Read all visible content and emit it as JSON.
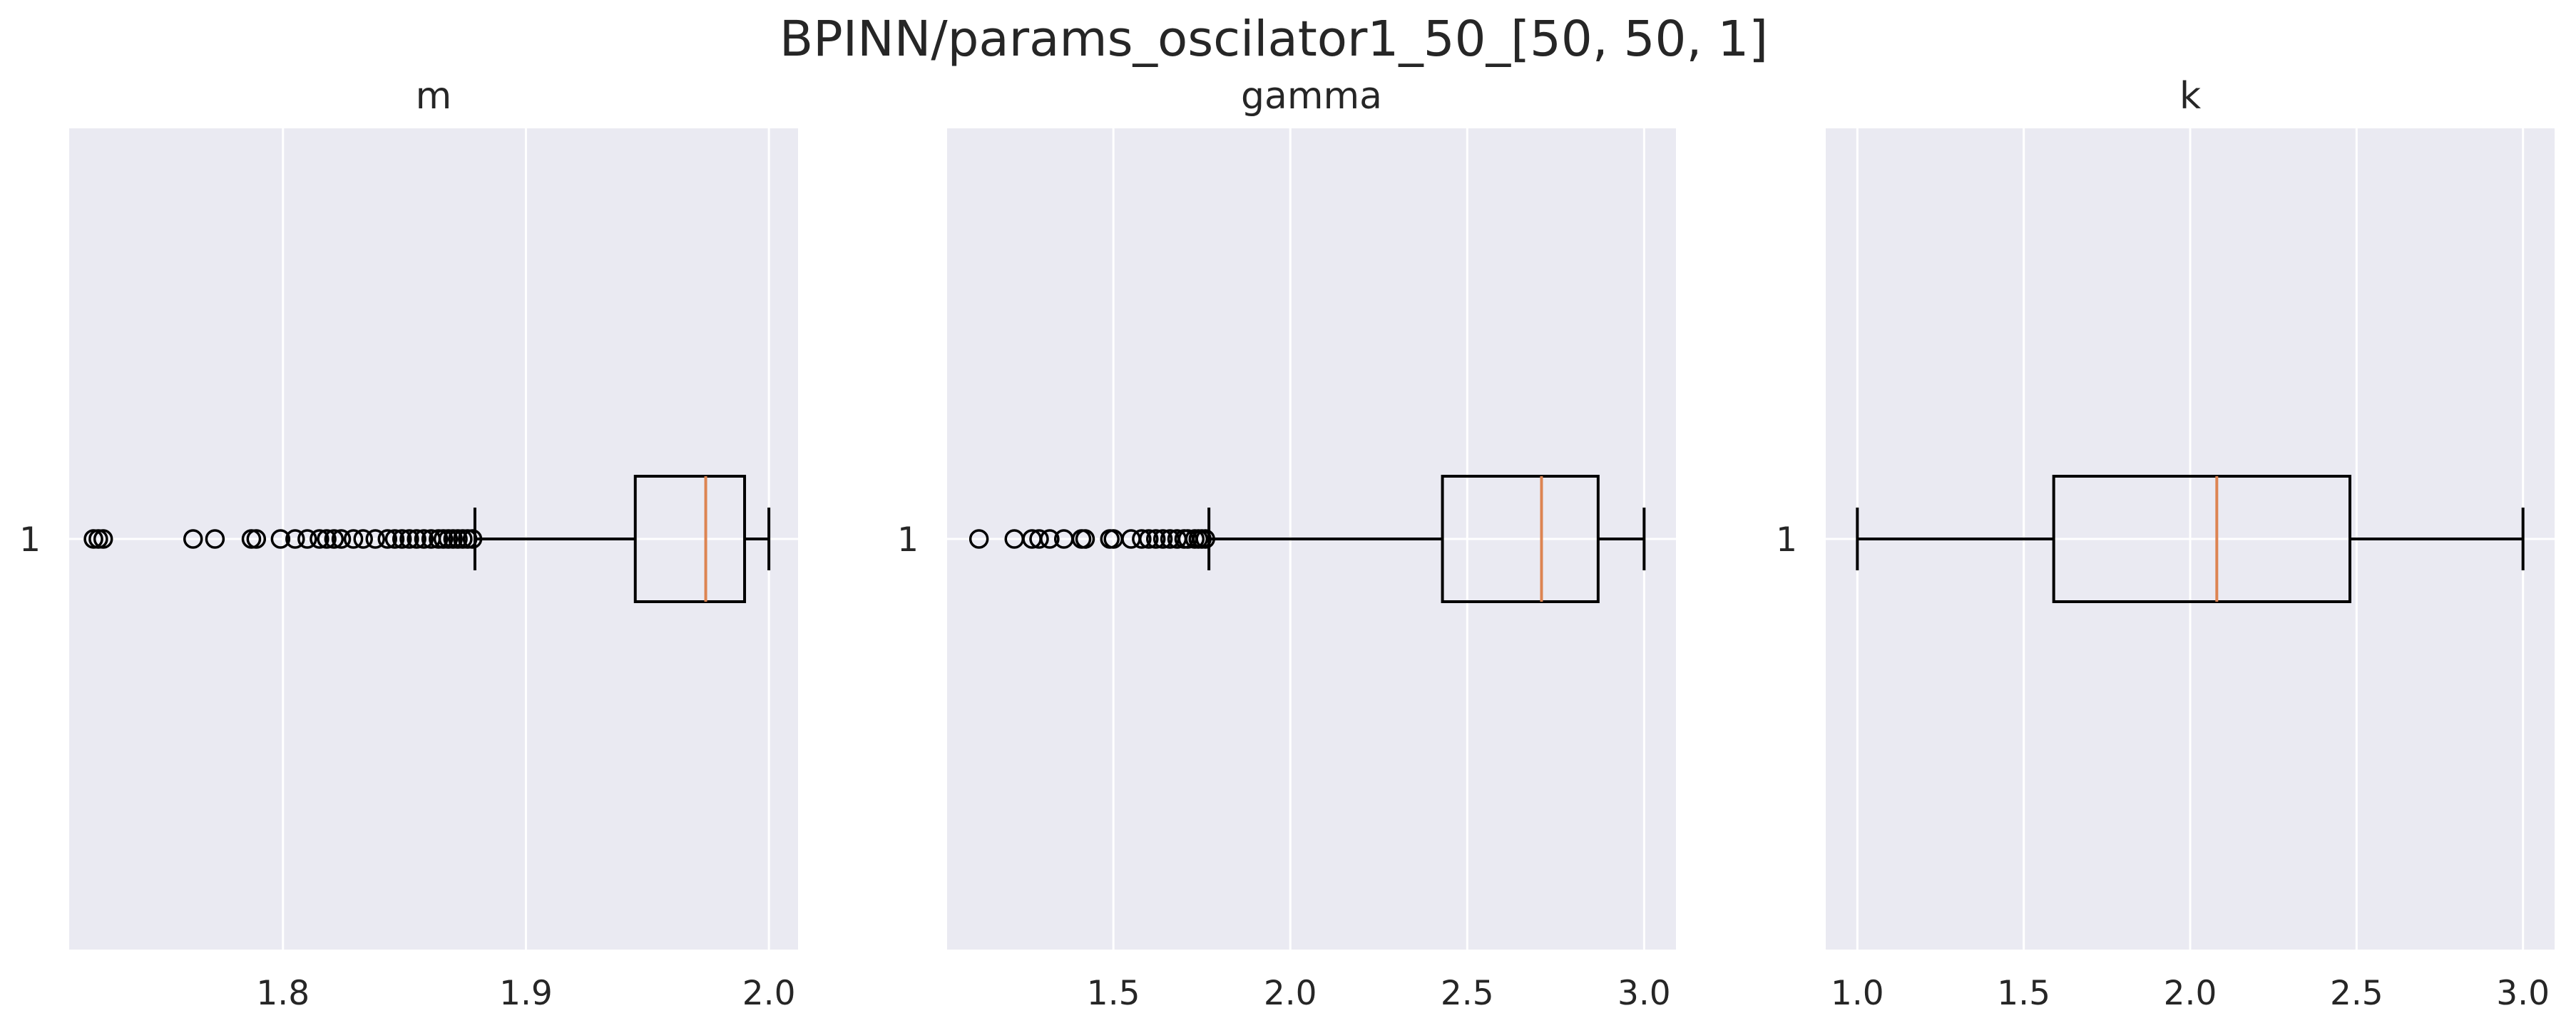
{
  "figure": {
    "suptitle": "BPINN/params_oscilator1_50_[50, 50, 1]"
  },
  "style": {
    "axes_bg": "#eaeaf2",
    "grid_color": "#ffffff",
    "box_color": "#000000",
    "median_color": "#dd8452",
    "text_color": "#262626"
  },
  "chart_data": [
    {
      "type": "boxplot",
      "orientation": "horizontal",
      "title": "m",
      "xlim": [
        1.712,
        2.012
      ],
      "xticks": [
        1.8,
        1.9,
        2.0
      ],
      "xtick_labels": [
        "1.8",
        "1.9",
        "2.0"
      ],
      "ytick_labels": [
        "1"
      ],
      "grid": true,
      "box": {
        "whisker_low": 1.879,
        "q1": 1.945,
        "median": 1.974,
        "q3": 1.99,
        "whisker_high": 2.0,
        "outliers": [
          1.722,
          1.724,
          1.726,
          1.763,
          1.772,
          1.787,
          1.789,
          1.799,
          1.805,
          1.81,
          1.815,
          1.818,
          1.821,
          1.824,
          1.829,
          1.833,
          1.838,
          1.843,
          1.846,
          1.849,
          1.852,
          1.855,
          1.858,
          1.861,
          1.864,
          1.866,
          1.868,
          1.87,
          1.872,
          1.874,
          1.876,
          1.878
        ]
      }
    },
    {
      "type": "boxplot",
      "orientation": "horizontal",
      "title": "gamma",
      "xlim": [
        1.03,
        3.09
      ],
      "xticks": [
        1.5,
        2.0,
        2.5,
        3.0
      ],
      "xtick_labels": [
        "1.5",
        "2.0",
        "2.5",
        "3.0"
      ],
      "ytick_labels": [
        "1"
      ],
      "grid": true,
      "box": {
        "whisker_low": 1.77,
        "q1": 2.43,
        "median": 2.71,
        "q3": 2.87,
        "whisker_high": 3.0,
        "outliers": [
          1.12,
          1.22,
          1.27,
          1.29,
          1.32,
          1.36,
          1.41,
          1.42,
          1.49,
          1.5,
          1.55,
          1.58,
          1.6,
          1.62,
          1.64,
          1.66,
          1.68,
          1.7,
          1.71,
          1.73,
          1.74,
          1.75,
          1.76
        ]
      }
    },
    {
      "type": "boxplot",
      "orientation": "horizontal",
      "title": "k",
      "xlim": [
        0.905,
        3.095
      ],
      "xticks": [
        1.0,
        1.5,
        2.0,
        2.5,
        3.0
      ],
      "xtick_labels": [
        "1.0",
        "1.5",
        "2.0",
        "2.5",
        "3.0"
      ],
      "ytick_labels": [
        "1"
      ],
      "grid": true,
      "box": {
        "whisker_low": 1.0,
        "q1": 1.59,
        "median": 2.08,
        "q3": 2.48,
        "whisker_high": 3.0,
        "outliers": []
      }
    }
  ]
}
